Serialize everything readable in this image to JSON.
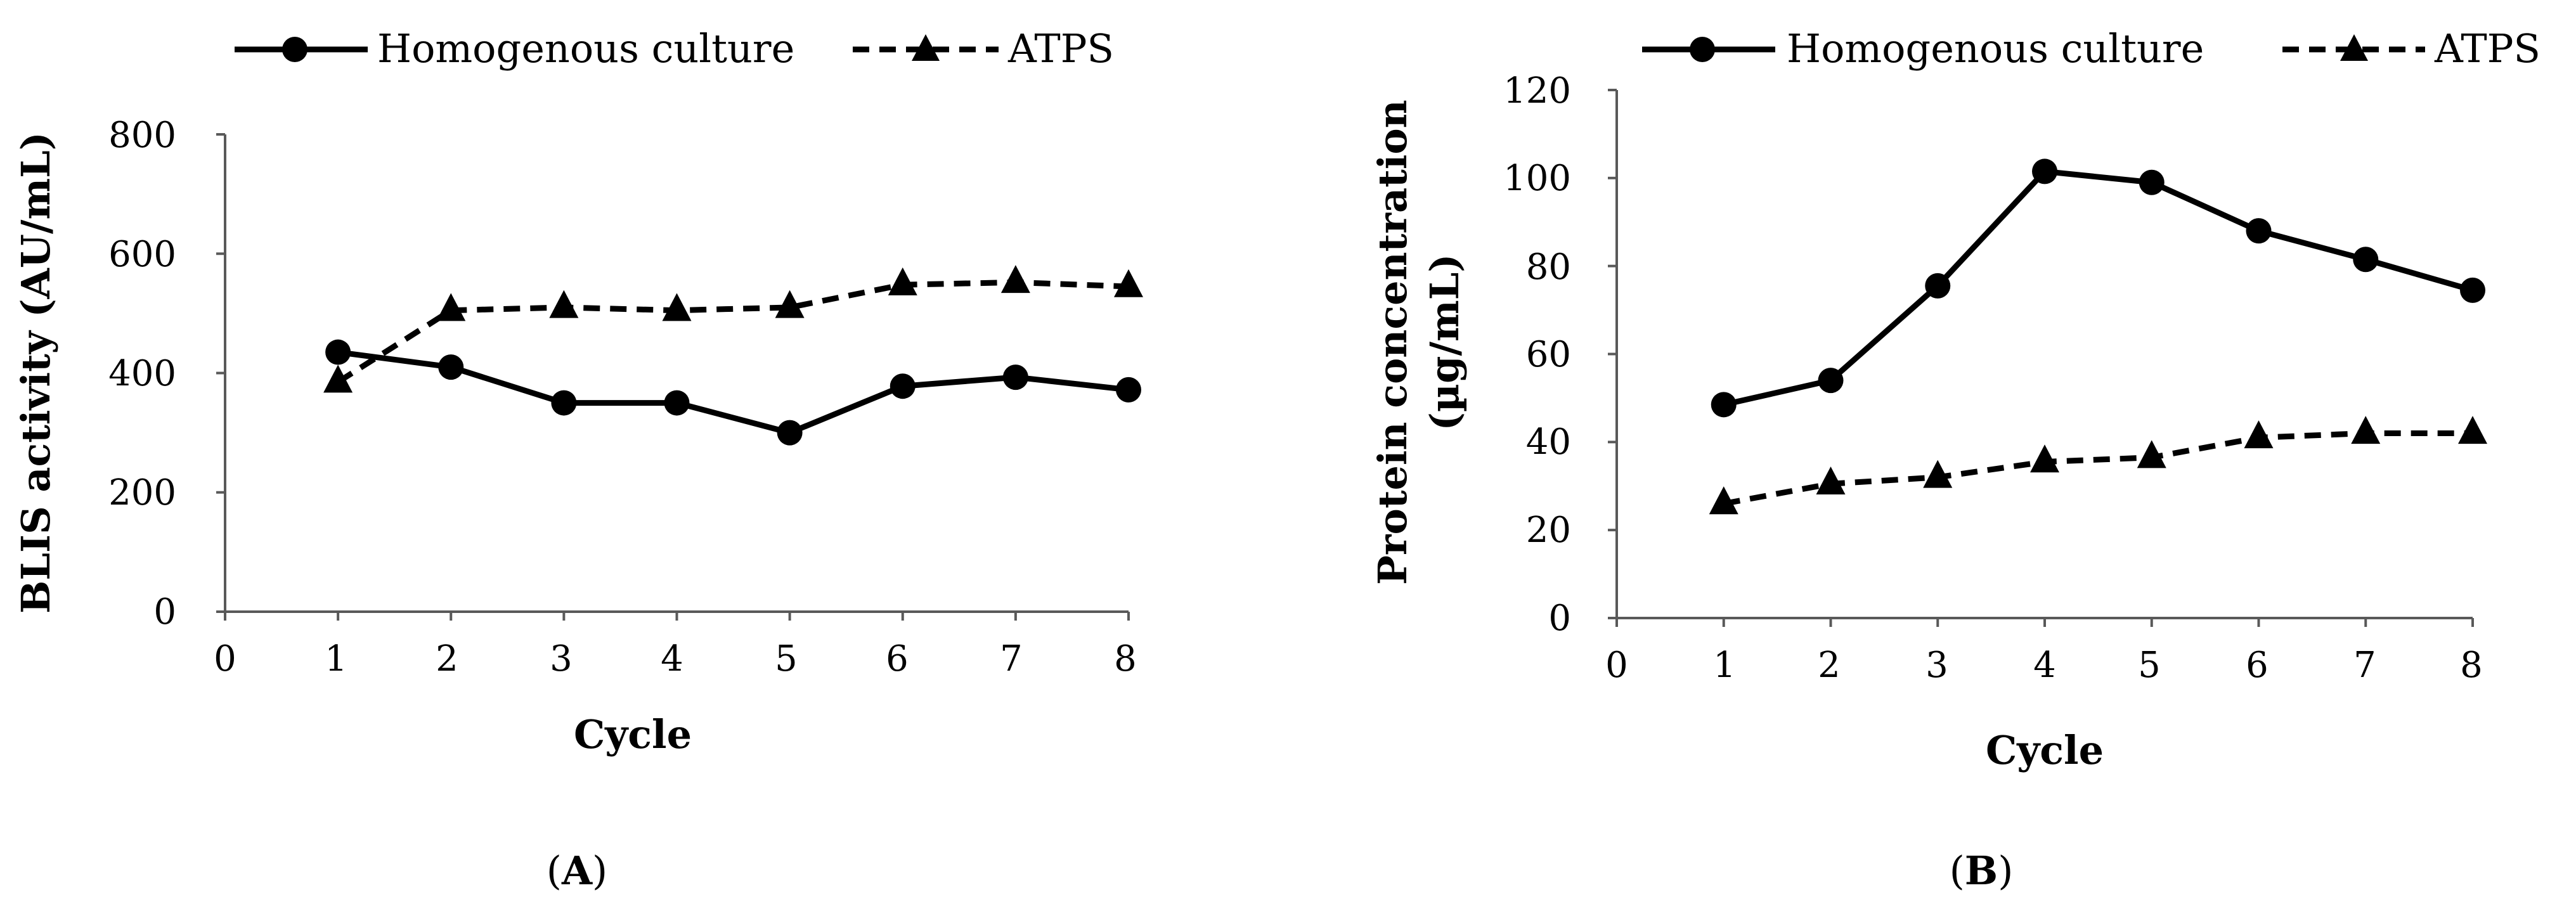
{
  "chart_data": [
    {
      "panel": "A",
      "type": "line",
      "title": "",
      "xlabel": "Cycle",
      "ylabel": "BLIS activity (AU/mL)",
      "xlim": [
        0,
        8
      ],
      "ylim": [
        0,
        800
      ],
      "xticks": [
        "0",
        "1",
        "2",
        "3",
        "4",
        "5",
        "6",
        "7",
        "8"
      ],
      "yticks": [
        "0",
        "200",
        "400",
        "600",
        "800"
      ],
      "legend_position": "top",
      "grid": false,
      "series": [
        {
          "name": "Homogenous culture",
          "line_style": "solid",
          "marker": "circle",
          "x": [
            1,
            2,
            3,
            4,
            5,
            6,
            7,
            8
          ],
          "values": [
            435,
            410,
            350,
            350,
            300,
            378,
            393,
            372
          ]
        },
        {
          "name": "ATPS",
          "line_style": "dashed",
          "marker": "triangle",
          "x": [
            1,
            2,
            3,
            4,
            5,
            6,
            7,
            8
          ],
          "values": [
            385,
            505,
            510,
            505,
            510,
            548,
            552,
            545
          ]
        }
      ]
    },
    {
      "panel": "B",
      "type": "line",
      "title": "",
      "xlabel": "Cycle",
      "ylabel_line1": "Protein concentration",
      "ylabel_line2": "(µg/mL)",
      "xlim": [
        0,
        8
      ],
      "ylim": [
        0,
        120
      ],
      "xticks": [
        "0",
        "1",
        "2",
        "3",
        "4",
        "5",
        "6",
        "7",
        "8"
      ],
      "yticks": [
        "0",
        "20",
        "40",
        "60",
        "80",
        "100",
        "120"
      ],
      "legend_position": "top",
      "grid": false,
      "series": [
        {
          "name": "Homogenous culture",
          "line_style": "solid",
          "marker": "circle",
          "x": [
            1,
            2,
            3,
            4,
            5,
            6,
            7,
            8
          ],
          "values": [
            48.5,
            54,
            75.5,
            101.5,
            99,
            88,
            81.5,
            74.5
          ]
        },
        {
          "name": "ATPS",
          "line_style": "dashed",
          "marker": "triangle",
          "x": [
            1,
            2,
            3,
            4,
            5,
            6,
            7,
            8
          ],
          "values": [
            26,
            30.5,
            32,
            35.5,
            36.5,
            41,
            42,
            42
          ]
        }
      ]
    }
  ],
  "panel_labels": {
    "a_open": "(",
    "a_letter": "A",
    "a_close": ")",
    "b_open": "(",
    "b_letter": "B",
    "b_close": ")"
  },
  "colors": {
    "line": "#000000",
    "background": "#ffffff"
  }
}
